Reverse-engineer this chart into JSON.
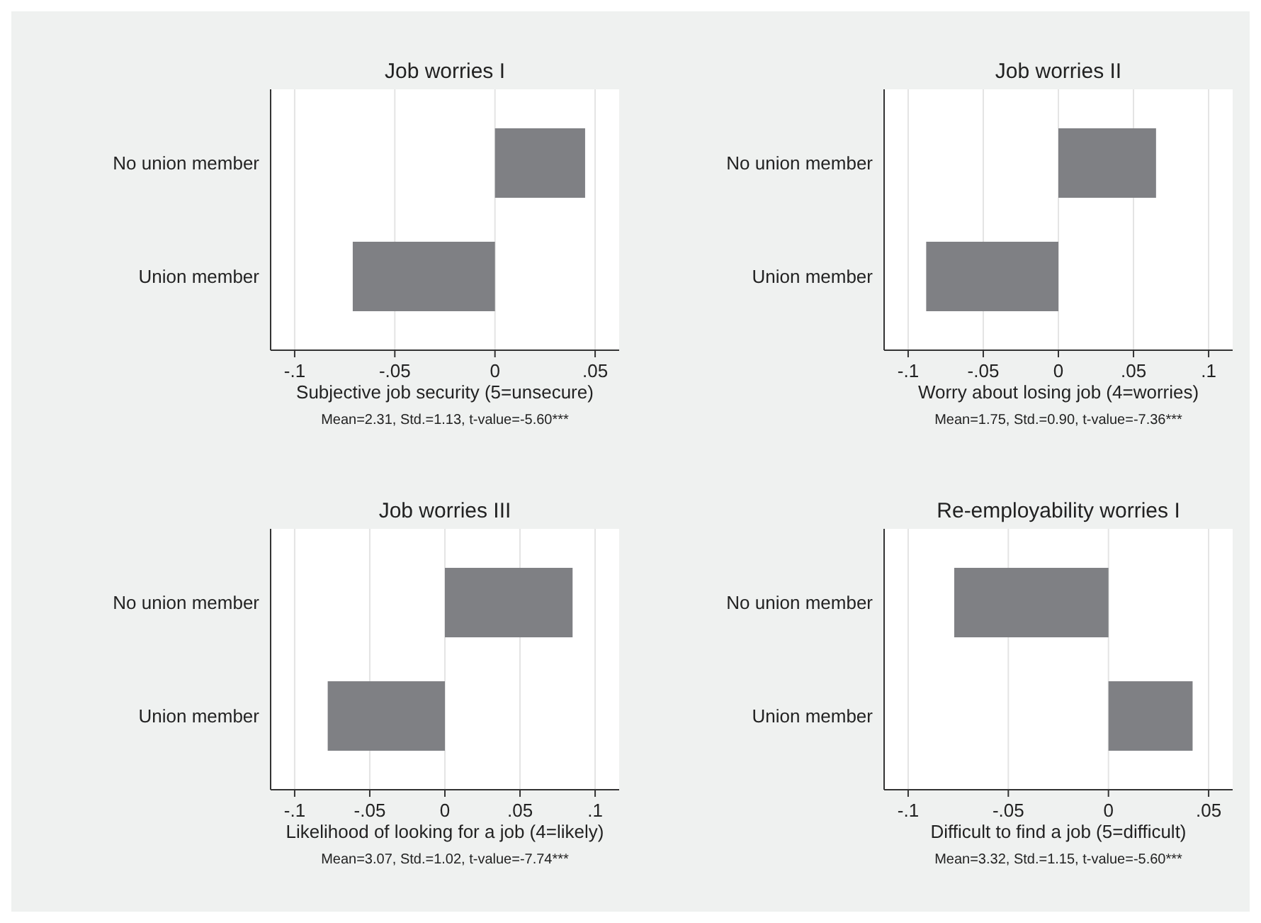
{
  "chart_data": [
    {
      "type": "bar",
      "orientation": "horizontal",
      "title": "Job worries I",
      "xlabel": "Subjective job security (5=unsecure)",
      "categories": [
        "No union member",
        "Union member"
      ],
      "values": [
        0.045,
        -0.071
      ],
      "color": "#7f8084",
      "xlim": [
        -0.112,
        0.062
      ],
      "xticks": [
        {
          "value": -0.1,
          "label": "-.1"
        },
        {
          "value": -0.05,
          "label": "-.05"
        },
        {
          "value": 0,
          "label": "0"
        },
        {
          "value": 0.05,
          "label": ".05"
        }
      ],
      "grid": "x",
      "annotations": [
        "Mean=2.31, Std.=1.13, t-value=-5.60***"
      ]
    },
    {
      "type": "bar",
      "orientation": "horizontal",
      "title": "Job worries II",
      "xlabel": "Worry about losing job (4=worries)",
      "categories": [
        "No union member",
        "Union member"
      ],
      "values": [
        0.065,
        -0.088
      ],
      "color": "#7f8084",
      "xlim": [
        -0.116,
        0.116
      ],
      "xticks": [
        {
          "value": -0.1,
          "label": "-.1"
        },
        {
          "value": -0.05,
          "label": "-.05"
        },
        {
          "value": 0,
          "label": "0"
        },
        {
          "value": 0.05,
          "label": ".05"
        },
        {
          "value": 0.1,
          "label": ".1"
        }
      ],
      "grid": "x",
      "annotations": [
        "Mean=1.75, Std.=0.90, t-value=-7.36***"
      ]
    },
    {
      "type": "bar",
      "orientation": "horizontal",
      "title": "Job worries III",
      "xlabel": "Likelihood of looking for a job (4=likely)",
      "categories": [
        "No union member",
        "Union member"
      ],
      "values": [
        0.085,
        -0.078
      ],
      "color": "#7f8084",
      "xlim": [
        -0.116,
        0.116
      ],
      "xticks": [
        {
          "value": -0.1,
          "label": "-.1"
        },
        {
          "value": -0.05,
          "label": "-.05"
        },
        {
          "value": 0,
          "label": "0"
        },
        {
          "value": 0.05,
          "label": ".05"
        },
        {
          "value": 0.1,
          "label": ".1"
        }
      ],
      "grid": "x",
      "annotations": [
        "Mean=3.07, Std.=1.02, t-value=-7.74***"
      ]
    },
    {
      "type": "bar",
      "orientation": "horizontal",
      "title": "Re-employability worries I",
      "xlabel": "Difficult to find a job (5=difficult)",
      "categories": [
        "No union member",
        "Union member"
      ],
      "values": [
        -0.077,
        0.042
      ],
      "color": "#7f8084",
      "xlim": [
        -0.112,
        0.062
      ],
      "xticks": [
        {
          "value": -0.1,
          "label": "-.1"
        },
        {
          "value": -0.05,
          "label": "-.05"
        },
        {
          "value": 0,
          "label": "0"
        },
        {
          "value": 0.05,
          "label": ".05"
        }
      ],
      "grid": "x",
      "annotations": [
        "Mean=3.32, Std.=1.15, t-value=-5.60***"
      ]
    }
  ]
}
